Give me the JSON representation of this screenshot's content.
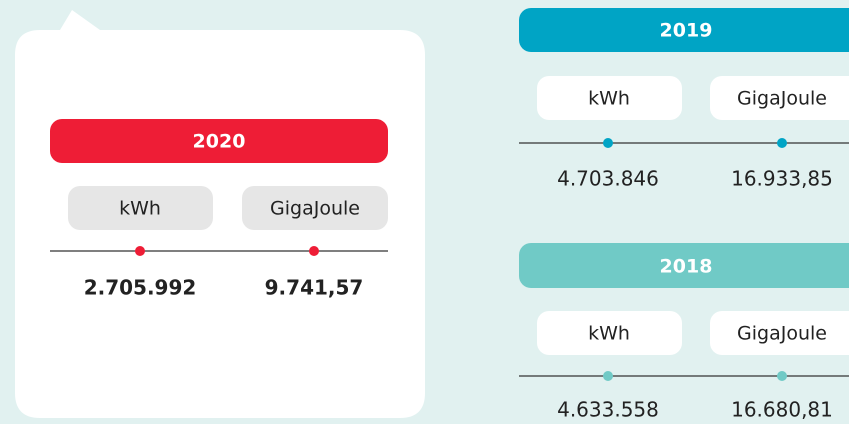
{
  "panels": [
    {
      "year": "2020",
      "units": [
        "kWh",
        "GigaJoule"
      ],
      "values": [
        "2.705.992",
        "9.741,57"
      ]
    },
    {
      "year": "2019",
      "units": [
        "kWh",
        "GigaJoule"
      ],
      "values": [
        "4.703.846",
        "16.933,85"
      ]
    },
    {
      "year": "2018",
      "units": [
        "kWh",
        "GigaJoule"
      ],
      "values": [
        "4.633.558",
        "16.680,81"
      ]
    }
  ]
}
